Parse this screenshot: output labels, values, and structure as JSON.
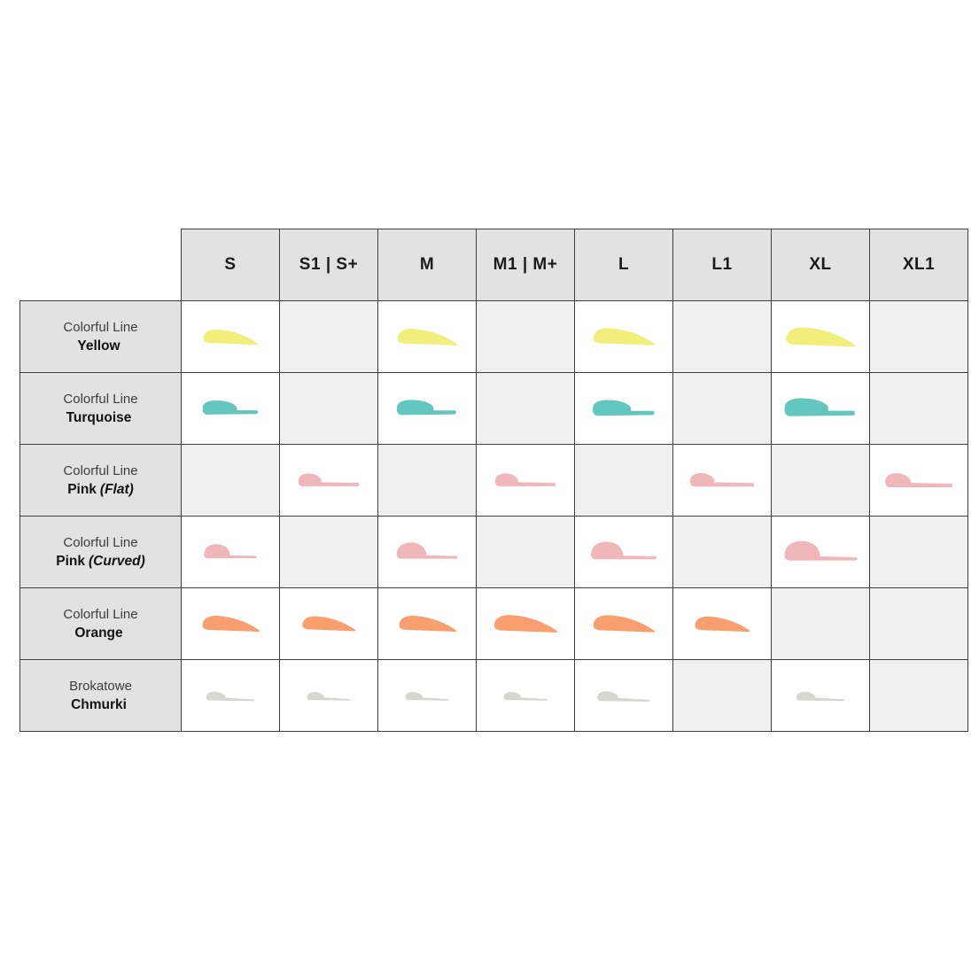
{
  "chart_data": {
    "type": "table",
    "title": "",
    "columns": [
      "S",
      "S1 | S+",
      "M",
      "M1 | M+",
      "L",
      "L1",
      "XL",
      "XL1"
    ],
    "rows": [
      {
        "line": "Colorful Line",
        "name": "Yellow",
        "name_suffix": "",
        "shape": "wing",
        "color": "#f2ee7b",
        "cells": [
          0.78,
          null,
          0.86,
          null,
          0.88,
          null,
          1.0,
          null
        ]
      },
      {
        "line": "Colorful Line",
        "name": "Turquoise",
        "name_suffix": "",
        "shape": "step",
        "color": "#63c6bf",
        "cells": [
          0.82,
          null,
          0.88,
          null,
          0.92,
          null,
          1.05,
          null
        ]
      },
      {
        "line": "Colorful Line",
        "name": "Pink",
        "name_suffix": "(Flat)",
        "shape": "flat",
        "color": "#f0b7bb",
        "cells": [
          null,
          0.9,
          null,
          0.9,
          null,
          0.95,
          null,
          1.0
        ]
      },
      {
        "line": "Colorful Line",
        "name": "Pink",
        "name_suffix": "(Curved)",
        "shape": "dome",
        "color": "#f0b7bb",
        "cells": [
          0.78,
          null,
          0.9,
          null,
          0.98,
          null,
          1.08,
          null
        ]
      },
      {
        "line": "Colorful Line",
        "name": "Orange",
        "name_suffix": "",
        "shape": "wing",
        "color": "#f99e6e",
        "cells": [
          0.82,
          0.76,
          0.82,
          0.9,
          0.88,
          0.78,
          null,
          null
        ]
      },
      {
        "line": "Brokatowe",
        "name": "Chmurki",
        "name_suffix": "",
        "shape": "cloud",
        "color": "#d7d7d1",
        "cells": [
          0.75,
          0.68,
          0.68,
          0.68,
          0.82,
          null,
          0.75,
          null
        ]
      }
    ]
  },
  "colors": {
    "header_bg": "#e2e2e2",
    "label_bg": "#e2e2e2",
    "available_cell_bg": "#ffffff",
    "empty_cell_bg": "#f0f0f0",
    "border": "#3f3f3f",
    "yellow": "#f2ee7b",
    "turquoise": "#63c6bf",
    "pink": "#f0b7bb",
    "orange": "#f99e6e",
    "glitter_gray": "#d7d7d1"
  }
}
